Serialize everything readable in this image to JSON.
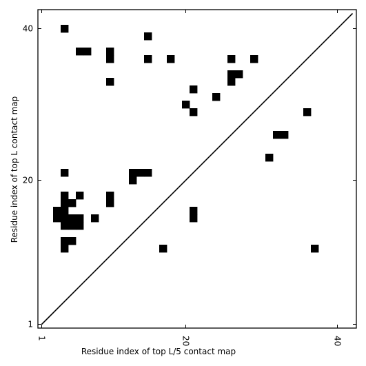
{
  "chart_data": {
    "type": "heatmap",
    "xlabel": "Residue index of top L/5 contact map",
    "ylabel": "Residue index of top L contact map",
    "xlim": [
      0.5,
      42.5
    ],
    "ylim": [
      0.5,
      42.5
    ],
    "x_ticks": [
      1,
      20,
      40
    ],
    "y_ticks": [
      1,
      20,
      40
    ],
    "x_tick_labels": [
      "1",
      "20",
      "40"
    ],
    "y_tick_labels": [
      "1",
      "20",
      "40"
    ],
    "x_tick_rotation_deg": -90,
    "diagonal": {
      "from": [
        1,
        1
      ],
      "to": [
        42,
        42
      ]
    },
    "grid": false,
    "legend": "none",
    "cell_color": "#000000",
    "background_color": "#ffffff",
    "contacts": [
      [
        4,
        40
      ],
      [
        15,
        39
      ],
      [
        6,
        37
      ],
      [
        7,
        37
      ],
      [
        10,
        37
      ],
      [
        10,
        36
      ],
      [
        15,
        36
      ],
      [
        18,
        36
      ],
      [
        26,
        36
      ],
      [
        29,
        36
      ],
      [
        26,
        34
      ],
      [
        27,
        34
      ],
      [
        10,
        33
      ],
      [
        26,
        33
      ],
      [
        21,
        32
      ],
      [
        24,
        31
      ],
      [
        20,
        30
      ],
      [
        21,
        29
      ],
      [
        36,
        29
      ],
      [
        32,
        26
      ],
      [
        33,
        26
      ],
      [
        31,
        23
      ],
      [
        4,
        21
      ],
      [
        13,
        21
      ],
      [
        14,
        21
      ],
      [
        15,
        21
      ],
      [
        13,
        20
      ],
      [
        4,
        18
      ],
      [
        6,
        18
      ],
      [
        10,
        18
      ],
      [
        4,
        17
      ],
      [
        5,
        17
      ],
      [
        10,
        17
      ],
      [
        3,
        16
      ],
      [
        4,
        16
      ],
      [
        21,
        16
      ],
      [
        3,
        15
      ],
      [
        4,
        15
      ],
      [
        5,
        15
      ],
      [
        6,
        15
      ],
      [
        8,
        15
      ],
      [
        21,
        15
      ],
      [
        4,
        14
      ],
      [
        5,
        14
      ],
      [
        6,
        14
      ],
      [
        4,
        12
      ],
      [
        5,
        12
      ],
      [
        4,
        11
      ],
      [
        17,
        11
      ],
      [
        37,
        11
      ]
    ]
  }
}
